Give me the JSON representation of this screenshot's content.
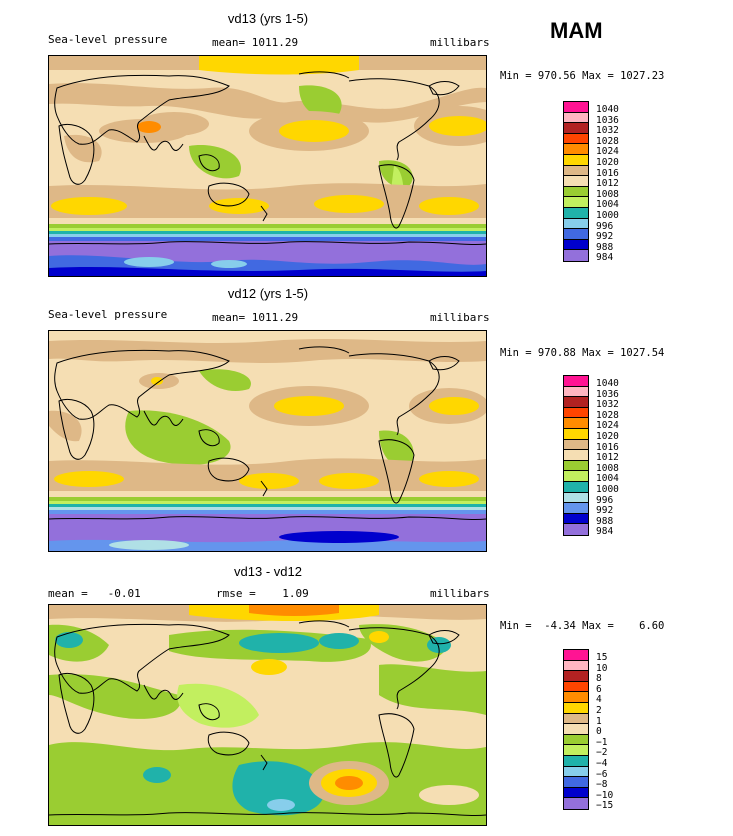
{
  "season": "MAM",
  "panels": [
    {
      "title": "vd13 (yrs 1-5)",
      "left_label": "Sea-level pressure",
      "center_label": "mean= 1011.29",
      "right_label": "millibars",
      "minmax": "Min = 970.56 Max = 1027.23",
      "legend_labels": [
        "1040",
        "1036",
        "1032",
        "1028",
        "1024",
        "1020",
        "1016",
        "1012",
        "1008",
        "1004",
        "1000",
        "996",
        "992",
        "988",
        "984"
      ],
      "legend_colors": [
        "#ff1493",
        "#ffb6c1",
        "#b22222",
        "#ff4500",
        "#ff8c00",
        "#ffd700",
        "#deb887",
        "#f5deb3",
        "#9acd32",
        "#c2ef5f",
        "#20b2aa",
        "#87ceeb",
        "#4169e1",
        "#0000cd",
        "#9370db"
      ]
    },
    {
      "title": "vd12 (yrs 1-5)",
      "left_label": "Sea-level pressure",
      "center_label": "mean= 1011.29",
      "right_label": "millibars",
      "minmax": "Min = 970.88 Max = 1027.54",
      "legend_labels": [
        "1040",
        "1036",
        "1032",
        "1028",
        "1024",
        "1020",
        "1016",
        "1012",
        "1008",
        "1004",
        "1000",
        "996",
        "992",
        "988",
        "984"
      ],
      "legend_colors": [
        "#ff1493",
        "#ffb6c1",
        "#b22222",
        "#ff4500",
        "#ff8c00",
        "#ffd700",
        "#deb887",
        "#f5deb3",
        "#9acd32",
        "#c2ef5f",
        "#20b2aa",
        "#b0e0e6",
        "#6495ed",
        "#0000cd",
        "#9370db"
      ]
    },
    {
      "title": "vd13 - vd12",
      "left_label": "mean =   -0.01",
      "center_label": "rmse =    1.09",
      "right_label": "millibars",
      "minmax": "Min =  -4.34 Max =    6.60",
      "legend_labels": [
        "15",
        "10",
        "8",
        "6",
        "4",
        "2",
        "1",
        "0",
        "−1",
        "−2",
        "−4",
        "−6",
        "−8",
        "−10",
        "−15"
      ],
      "legend_colors": [
        "#ff1493",
        "#ffb6c1",
        "#b22222",
        "#ff4500",
        "#ff8c00",
        "#ffd700",
        "#deb887",
        "#f5deb3",
        "#9acd32",
        "#c2ef5f",
        "#20b2aa",
        "#87ceeb",
        "#4169e1",
        "#0000cd",
        "#9370db"
      ]
    }
  ]
}
